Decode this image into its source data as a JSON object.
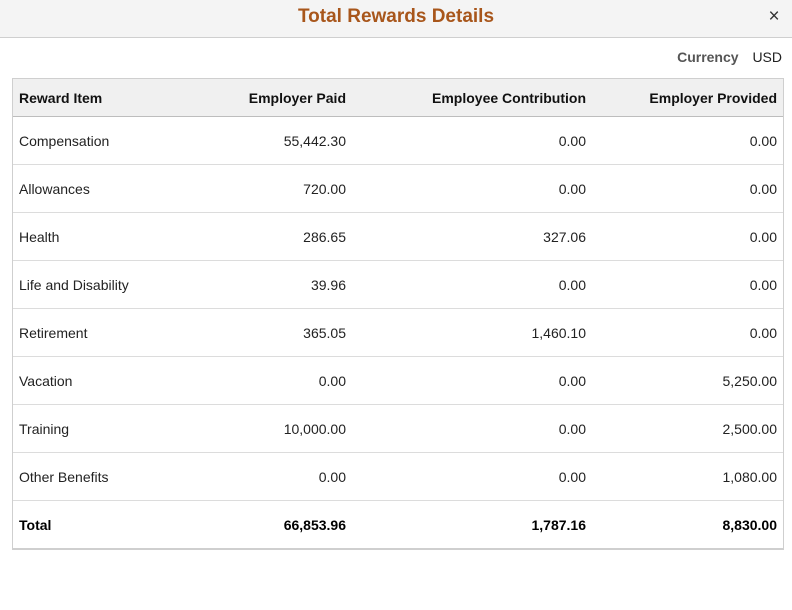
{
  "dialog": {
    "title": "Total Rewards Details",
    "close_label": "×",
    "currency_label": "Currency",
    "currency_value": "USD"
  },
  "table": {
    "columns": [
      "Reward Item",
      "Employer Paid",
      "Employee Contribution",
      "Employer Provided"
    ],
    "rows": [
      {
        "item": "Compensation",
        "employer_paid": "55,442.30",
        "employee_contribution": "0.00",
        "employer_provided": "0.00"
      },
      {
        "item": "Allowances",
        "employer_paid": "720.00",
        "employee_contribution": "0.00",
        "employer_provided": "0.00"
      },
      {
        "item": "Health",
        "employer_paid": "286.65",
        "employee_contribution": "327.06",
        "employer_provided": "0.00"
      },
      {
        "item": "Life and Disability",
        "employer_paid": "39.96",
        "employee_contribution": "0.00",
        "employer_provided": "0.00"
      },
      {
        "item": "Retirement",
        "employer_paid": "365.05",
        "employee_contribution": "1,460.10",
        "employer_provided": "0.00"
      },
      {
        "item": "Vacation",
        "employer_paid": "0.00",
        "employee_contribution": "0.00",
        "employer_provided": "5,250.00"
      },
      {
        "item": "Training",
        "employer_paid": "10,000.00",
        "employee_contribution": "0.00",
        "employer_provided": "2,500.00"
      },
      {
        "item": "Other Benefits",
        "employer_paid": "0.00",
        "employee_contribution": "0.00",
        "employer_provided": "1,080.00"
      }
    ],
    "total": {
      "item": "Total",
      "employer_paid": "66,853.96",
      "employee_contribution": "1,787.16",
      "employer_provided": "8,830.00"
    }
  },
  "colors": {
    "title": "#a8561b",
    "header_bg": "#f4f4f4",
    "table_header_bg": "#f0f0f0",
    "border": "#cfcfcf"
  }
}
